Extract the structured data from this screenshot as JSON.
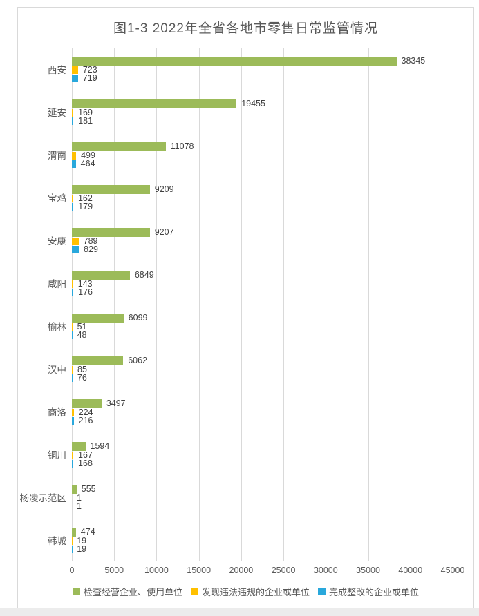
{
  "chart_data": {
    "type": "bar",
    "orientation": "horizontal",
    "title": "图1-3 2022年全省各地市零售日常监管情况",
    "categories": [
      "西安",
      "延安",
      "渭南",
      "宝鸡",
      "安康",
      "咸阳",
      "榆林",
      "汉中",
      "商洛",
      "铜川",
      "杨凌示范区",
      "韩城"
    ],
    "series": [
      {
        "name": "检查经营企业、使用单位",
        "color": "#9cbb59",
        "values": [
          38345,
          19455,
          11078,
          9209,
          9207,
          6849,
          6099,
          6062,
          3497,
          1594,
          555,
          474
        ]
      },
      {
        "name": "发现违法违规的企业或单位",
        "color": "#ffc000",
        "values": [
          723,
          169,
          499,
          162,
          789,
          143,
          51,
          85,
          224,
          167,
          1,
          19
        ]
      },
      {
        "name": "完成整改的企业或单位",
        "color": "#29a8dc",
        "values": [
          719,
          181,
          464,
          179,
          829,
          176,
          48,
          76,
          216,
          168,
          1,
          19
        ]
      }
    ],
    "x_axis": {
      "tick_labels": [
        "0",
        "5000",
        "10000",
        "15000",
        "20000",
        "25000",
        "30000",
        "35000",
        "40000",
        "45000"
      ],
      "min": 0,
      "max": 45000
    },
    "legend_position": "bottom",
    "grid": true,
    "colors": {
      "grid_line": "#d9d9d9",
      "text": "#595959",
      "value_text": "#404040"
    }
  }
}
